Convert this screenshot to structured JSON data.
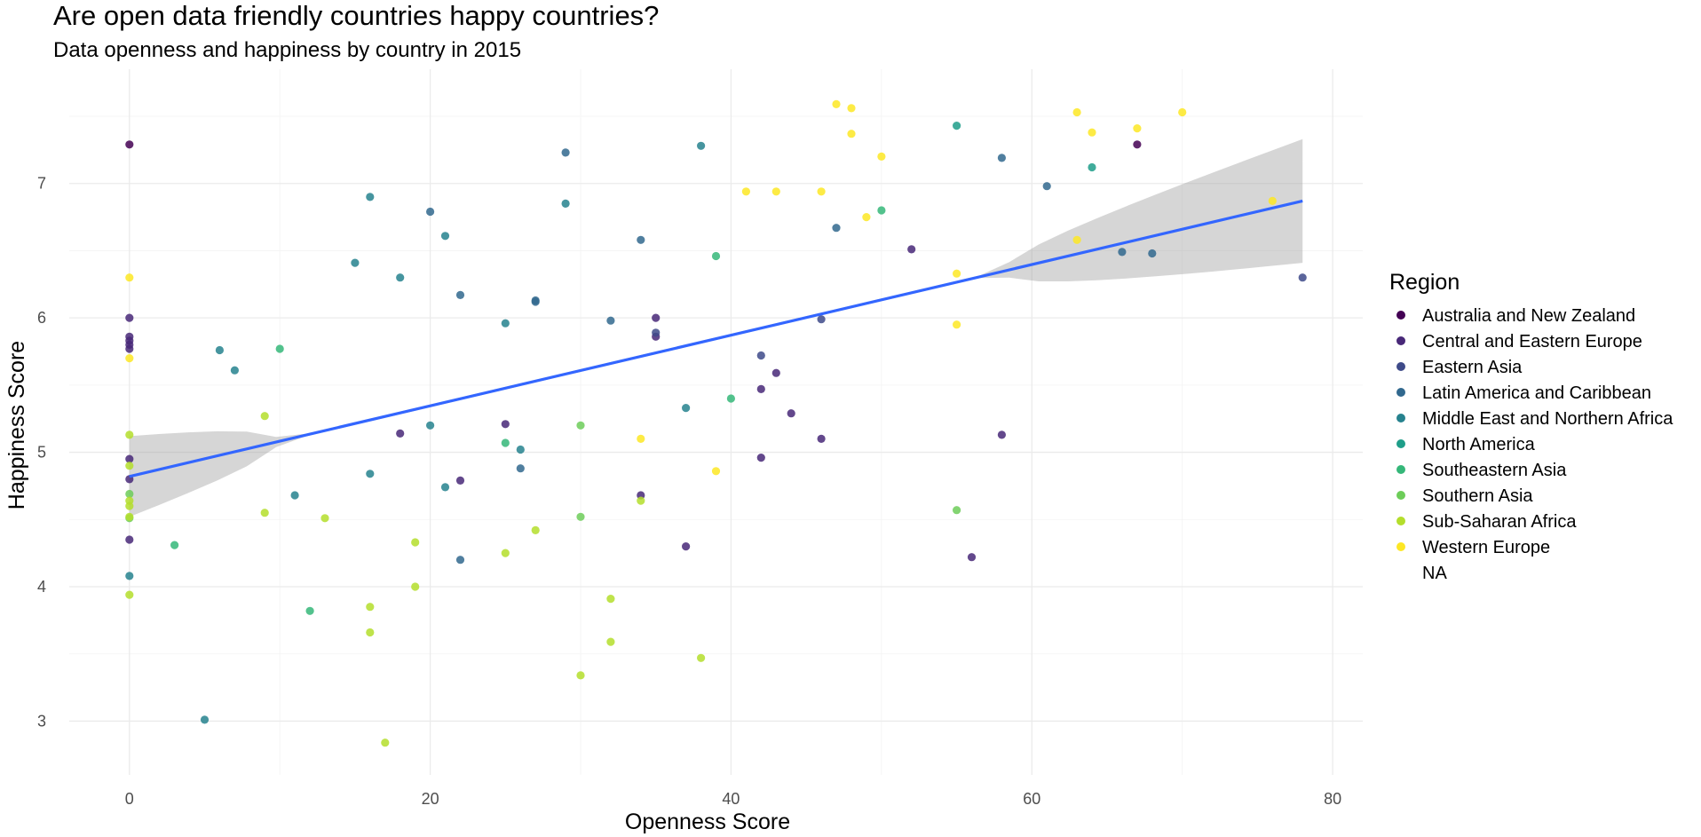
{
  "chart_data": {
    "type": "scatter",
    "title": "Are open data friendly countries happy countries?",
    "subtitle": "Data openness and happiness by country in 2015",
    "xlabel": "Openness Score",
    "ylabel": "Happiness Score",
    "xlim": [
      -4,
      82
    ],
    "ylim": [
      2.6,
      7.85
    ],
    "x_ticks": [
      0,
      20,
      40,
      60,
      80
    ],
    "y_ticks": [
      3,
      4,
      5,
      6,
      7
    ],
    "grid": true,
    "legend": {
      "title": "Region",
      "placement": "right",
      "entries": [
        {
          "label": "Australia and New Zealand",
          "color": "#440154"
        },
        {
          "label": "Central and Eastern Europe",
          "color": "#482878"
        },
        {
          "label": "Eastern Asia",
          "color": "#3E4A89"
        },
        {
          "label": "Latin America and Caribbean",
          "color": "#31688E"
        },
        {
          "label": "Middle East and Northern Africa",
          "color": "#26828E"
        },
        {
          "label": "North America",
          "color": "#1F9E89"
        },
        {
          "label": "Southeastern Asia",
          "color": "#35B779"
        },
        {
          "label": "Southern Asia",
          "color": "#6DCD59"
        },
        {
          "label": "Sub-Saharan Africa",
          "color": "#B4DE2C"
        },
        {
          "label": "Western Europe",
          "color": "#FDE725"
        },
        {
          "label": "NA",
          "color": ""
        }
      ]
    },
    "trend_line": {
      "color": "#3366FF",
      "band_color": "#999999",
      "x": [
        0,
        78
      ],
      "y": [
        4.82,
        6.87
      ],
      "lower": [
        4.52,
        6.41
      ],
      "upper": [
        5.12,
        7.33
      ]
    },
    "series": [
      {
        "name": "Australia and New Zealand",
        "points": [
          [
            0,
            7.29
          ],
          [
            67,
            7.29
          ]
        ]
      },
      {
        "name": "Central and Eastern Europe",
        "points": [
          [
            0,
            6.0
          ],
          [
            0,
            5.86
          ],
          [
            0,
            5.83
          ],
          [
            0,
            5.8
          ],
          [
            0,
            5.77
          ],
          [
            0,
            4.95
          ],
          [
            0,
            4.8
          ],
          [
            0,
            4.35
          ],
          [
            18,
            5.14
          ],
          [
            22,
            4.79
          ],
          [
            25,
            5.21
          ],
          [
            34,
            4.68
          ],
          [
            35,
            6.0
          ],
          [
            35,
            5.86
          ],
          [
            37,
            4.3
          ],
          [
            42,
            5.47
          ],
          [
            42,
            4.96
          ],
          [
            43,
            5.59
          ],
          [
            44,
            5.29
          ],
          [
            46,
            5.1
          ],
          [
            52,
            6.51
          ],
          [
            56,
            4.22
          ],
          [
            58,
            5.13
          ]
        ]
      },
      {
        "name": "Eastern Asia",
        "points": [
          [
            35,
            5.89
          ],
          [
            42,
            5.72
          ],
          [
            46,
            5.99
          ],
          [
            78,
            6.3
          ]
        ]
      },
      {
        "name": "Latin America and Caribbean",
        "points": [
          [
            20,
            6.79
          ],
          [
            22,
            6.17
          ],
          [
            27,
            6.13
          ],
          [
            27,
            6.12
          ],
          [
            29,
            7.23
          ],
          [
            32,
            5.98
          ],
          [
            34,
            6.58
          ],
          [
            47,
            6.67
          ],
          [
            58,
            7.19
          ],
          [
            61,
            6.98
          ],
          [
            66,
            6.49
          ],
          [
            68,
            6.48
          ],
          [
            26,
            4.88
          ],
          [
            22,
            4.2
          ]
        ]
      },
      {
        "name": "Middle East and Northern Africa",
        "points": [
          [
            0,
            4.08
          ],
          [
            5,
            3.01
          ],
          [
            6,
            5.76
          ],
          [
            7,
            5.61
          ],
          [
            11,
            4.68
          ],
          [
            15,
            6.41
          ],
          [
            16,
            6.9
          ],
          [
            16,
            4.84
          ],
          [
            18,
            6.3
          ],
          [
            20,
            5.2
          ],
          [
            21,
            6.61
          ],
          [
            21,
            4.74
          ],
          [
            25,
            5.96
          ],
          [
            26,
            5.02
          ],
          [
            29,
            6.85
          ],
          [
            37,
            5.33
          ],
          [
            38,
            7.28
          ]
        ]
      },
      {
        "name": "North America",
        "points": [
          [
            55,
            7.43
          ],
          [
            64,
            7.12
          ]
        ]
      },
      {
        "name": "Southeastern Asia",
        "points": [
          [
            3,
            4.31
          ],
          [
            10,
            5.77
          ],
          [
            12,
            3.82
          ],
          [
            25,
            5.07
          ],
          [
            39,
            6.46
          ],
          [
            40,
            5.4
          ],
          [
            50,
            6.8
          ]
        ]
      },
      {
        "name": "Southern Asia",
        "points": [
          [
            0,
            4.69
          ],
          [
            0,
            4.51
          ],
          [
            30,
            5.2
          ],
          [
            30,
            4.52
          ],
          [
            55,
            4.57
          ]
        ]
      },
      {
        "name": "Sub-Saharan Africa",
        "points": [
          [
            0,
            5.13
          ],
          [
            0,
            4.9
          ],
          [
            0,
            4.64
          ],
          [
            0,
            4.6
          ],
          [
            0,
            4.52
          ],
          [
            0,
            3.94
          ],
          [
            9,
            5.27
          ],
          [
            9,
            4.55
          ],
          [
            13,
            4.51
          ],
          [
            16,
            3.85
          ],
          [
            16,
            3.66
          ],
          [
            17,
            2.84
          ],
          [
            19,
            4.33
          ],
          [
            19,
            4.0
          ],
          [
            25,
            4.25
          ],
          [
            27,
            4.42
          ],
          [
            30,
            3.34
          ],
          [
            32,
            3.91
          ],
          [
            32,
            3.59
          ],
          [
            34,
            4.64
          ],
          [
            38,
            3.47
          ]
        ]
      },
      {
        "name": "Western Europe",
        "points": [
          [
            0,
            6.3
          ],
          [
            0,
            5.7
          ],
          [
            34,
            5.1
          ],
          [
            39,
            4.86
          ],
          [
            41,
            6.94
          ],
          [
            43,
            6.94
          ],
          [
            46,
            6.94
          ],
          [
            47,
            7.59
          ],
          [
            48,
            7.56
          ],
          [
            48,
            7.37
          ],
          [
            49,
            6.75
          ],
          [
            50,
            7.2
          ],
          [
            55,
            6.33
          ],
          [
            55,
            5.95
          ],
          [
            63,
            7.53
          ],
          [
            63,
            6.58
          ],
          [
            64,
            7.38
          ],
          [
            67,
            7.41
          ],
          [
            70,
            7.53
          ],
          [
            76,
            6.87
          ]
        ]
      }
    ]
  }
}
